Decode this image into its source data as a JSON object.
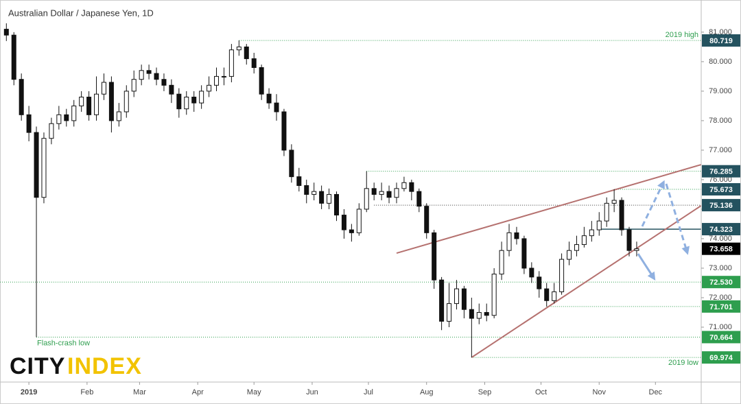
{
  "chart_data": {
    "type": "candlestick",
    "title": "Australian Dollar / Japanese Yen, 1D",
    "xlim": [
      -15.4,
      358.4
    ],
    "xticks": [
      {
        "value": 0,
        "label": "2019"
      },
      {
        "value": 31,
        "label": "Feb"
      },
      {
        "value": 59,
        "label": "Mar"
      },
      {
        "value": 90,
        "label": "Apr"
      },
      {
        "value": 120,
        "label": "May"
      },
      {
        "value": 151,
        "label": "Jun"
      },
      {
        "value": 181,
        "label": "Jul"
      },
      {
        "value": 212,
        "label": "Aug"
      },
      {
        "value": 243,
        "label": "Sep"
      },
      {
        "value": 273,
        "label": "Oct"
      },
      {
        "value": 304,
        "label": "Nov"
      },
      {
        "value": 334,
        "label": "Dec"
      }
    ],
    "ylim": [
      69.14,
      82.09
    ],
    "yticks": [
      {
        "value": 71,
        "label": "71.000"
      },
      {
        "value": 72,
        "label": "72.000"
      },
      {
        "value": 73,
        "label": "73.000"
      },
      {
        "value": 74,
        "label": "74.000"
      },
      {
        "value": 75,
        "label": "75.000"
      },
      {
        "value": 76,
        "label": "76.000"
      },
      {
        "value": 77,
        "label": "77.000"
      },
      {
        "value": 78,
        "label": "78.000"
      },
      {
        "value": 79,
        "label": "79.000"
      },
      {
        "value": 80,
        "label": "80.000"
      },
      {
        "value": 81,
        "label": "81.000"
      }
    ],
    "up_color": "#ffffff",
    "down_color": "#111111",
    "x": [
      -12,
      -8,
      -4,
      0,
      4,
      8,
      12,
      16,
      20,
      24,
      28,
      32,
      36,
      40,
      44,
      48,
      52,
      56,
      60,
      64,
      68,
      72,
      76,
      80,
      84,
      88,
      92,
      96,
      100,
      104,
      108,
      112,
      116,
      120,
      124,
      128,
      132,
      136,
      140,
      144,
      148,
      152,
      156,
      160,
      164,
      168,
      172,
      176,
      180,
      184,
      188,
      192,
      196,
      200,
      204,
      208,
      212,
      216,
      220,
      224,
      228,
      232,
      236,
      240,
      244,
      248,
      252,
      256,
      260,
      264,
      268,
      272,
      276,
      280,
      284,
      288,
      292,
      296,
      300,
      304,
      308,
      312,
      316,
      320,
      324
    ],
    "open": [
      81.1,
      80.9,
      79.4,
      78.2,
      77.6,
      75.4,
      77.4,
      77.9,
      78.2,
      78.0,
      78.5,
      78.8,
      78.2,
      78.9,
      79.3,
      78.0,
      78.3,
      79.0,
      79.4,
      79.7,
      79.6,
      79.4,
      79.2,
      78.9,
      78.4,
      78.8,
      78.6,
      79.0,
      79.2,
      79.5,
      79.5,
      80.4,
      80.5,
      80.1,
      79.8,
      78.9,
      78.6,
      78.3,
      77.0,
      76.1,
      75.8,
      75.5,
      75.6,
      75.2,
      75.5,
      74.8,
      74.3,
      74.2,
      75.0,
      75.7,
      75.5,
      75.6,
      75.4,
      75.7,
      75.9,
      75.6,
      75.1,
      74.2,
      72.6,
      71.2,
      71.8,
      72.3,
      71.6,
      71.3,
      71.5,
      71.4,
      72.8,
      73.6,
      74.2,
      74.0,
      73.0,
      72.7,
      72.3,
      71.9,
      72.2,
      73.3,
      73.6,
      73.8,
      74.1,
      74.3,
      74.6,
      75.2,
      75.3,
      74.3,
      73.6
    ],
    "high": [
      81.3,
      81.0,
      79.6,
      78.5,
      77.8,
      77.6,
      78.1,
      78.5,
      78.4,
      78.7,
      79.0,
      79.0,
      79.5,
      79.6,
      79.5,
      78.6,
      79.2,
      79.7,
      79.9,
      79.9,
      79.8,
      79.6,
      79.4,
      79.1,
      79.0,
      79.0,
      79.2,
      79.5,
      79.8,
      79.8,
      80.6,
      80.719,
      80.6,
      80.3,
      79.9,
      79.1,
      78.9,
      78.4,
      77.2,
      76.4,
      76.0,
      75.9,
      75.8,
      75.7,
      75.6,
      75.0,
      74.5,
      75.2,
      76.285,
      75.9,
      75.9,
      75.8,
      75.9,
      76.1,
      76.0,
      75.7,
      75.2,
      74.3,
      72.7,
      72.5,
      72.6,
      72.4,
      72.0,
      71.8,
      71.8,
      73.0,
      73.9,
      74.5,
      74.4,
      74.1,
      73.2,
      72.9,
      72.5,
      72.5,
      73.5,
      73.9,
      74.1,
      74.4,
      74.6,
      74.9,
      75.4,
      75.673,
      75.4,
      74.4,
      73.9
    ],
    "low": [
      80.7,
      79.2,
      78.0,
      77.3,
      70.664,
      75.2,
      77.2,
      77.7,
      77.8,
      77.8,
      78.3,
      78.0,
      78.0,
      78.7,
      77.6,
      77.8,
      78.1,
      78.8,
      79.2,
      79.4,
      79.2,
      79.0,
      78.6,
      78.1,
      78.2,
      78.3,
      78.4,
      78.8,
      79.0,
      79.2,
      79.3,
      80.2,
      79.9,
      79.6,
      78.7,
      78.4,
      78.0,
      76.8,
      75.9,
      75.6,
      75.2,
      75.3,
      75.0,
      75.0,
      74.6,
      74.0,
      73.9,
      74.1,
      74.9,
      75.3,
      75.3,
      75.2,
      75.2,
      75.6,
      75.3,
      74.9,
      74.0,
      72.3,
      70.9,
      71.0,
      71.6,
      71.3,
      69.974,
      71.1,
      71.2,
      71.3,
      72.6,
      73.4,
      73.8,
      72.8,
      72.5,
      72.0,
      71.701,
      71.8,
      72.1,
      73.1,
      73.4,
      73.7,
      73.9,
      74.1,
      74.4,
      74.9,
      74.1,
      73.4,
      73.4
    ],
    "close": [
      80.9,
      79.4,
      78.2,
      77.6,
      75.4,
      77.4,
      77.9,
      78.2,
      78.0,
      78.5,
      78.8,
      78.2,
      78.9,
      79.3,
      78.0,
      78.3,
      79.0,
      79.4,
      79.7,
      79.6,
      79.4,
      79.2,
      78.9,
      78.4,
      78.8,
      78.6,
      79.0,
      79.2,
      79.5,
      79.5,
      80.4,
      80.5,
      80.1,
      79.8,
      78.9,
      78.6,
      78.3,
      77.0,
      76.1,
      75.8,
      75.5,
      75.6,
      75.2,
      75.5,
      74.8,
      74.3,
      74.2,
      75.0,
      75.7,
      75.5,
      75.6,
      75.4,
      75.7,
      75.9,
      75.6,
      75.1,
      74.2,
      72.6,
      71.2,
      71.8,
      72.3,
      71.6,
      71.3,
      71.5,
      71.4,
      72.8,
      73.6,
      74.2,
      74.0,
      73.0,
      72.7,
      72.3,
      71.9,
      72.2,
      73.3,
      73.6,
      73.8,
      74.1,
      74.3,
      74.6,
      75.2,
      75.3,
      74.3,
      73.6,
      73.658
    ],
    "levels": [
      {
        "value": 80.719,
        "start": 112,
        "style": "dotted",
        "line_color": "#2e9e4e",
        "box_color": "#24525f",
        "text": "2019 high",
        "text_pos": "above"
      },
      {
        "value": 76.285,
        "start": 180,
        "style": "dotted",
        "line_color": "#2e9e4e",
        "box_color": "#24525f"
      },
      {
        "value": 75.673,
        "start": 312,
        "style": "dotted",
        "line_color": "#2e9e4e",
        "box_color": "#24525f"
      },
      {
        "value": 75.136,
        "start": 184,
        "style": "dotted",
        "line_color": "#333333",
        "box_color": "#24525f"
      },
      {
        "value": 74.323,
        "start": 304,
        "style": "solid",
        "line_color": "#24525f",
        "box_color": "#24525f"
      },
      {
        "value": 73.658,
        "box_color": "#000000"
      },
      {
        "value": 72.53,
        "value_label": "72.530",
        "start": -15.4,
        "style": "dotted",
        "line_color": "#2e9e4e",
        "box_color": "#2e9e4e"
      },
      {
        "value": 71.701,
        "start": 276,
        "style": "dotted",
        "line_color": "#2e9e4e",
        "box_color": "#2e9e4e"
      },
      {
        "value": 70.664,
        "start": 4,
        "style": "dotted",
        "line_color": "#2e9e4e",
        "box_color": "#2e9e4e",
        "text": "Flash-crash low",
        "text_pos": "below-left"
      },
      {
        "value": 69.974,
        "start": 236,
        "style": "dotted",
        "line_color": "#2e9e4e",
        "box_color": "#2e9e4e",
        "text": "2019 low",
        "text_pos": "below"
      }
    ],
    "trendlines": [
      {
        "x": [
          196,
          358.4
        ],
        "y": [
          73.51,
          76.51
        ],
        "color": "#b5716f"
      },
      {
        "x": [
          236,
          358.4
        ],
        "y": [
          69.974,
          75.12
        ],
        "color": "#b5716f"
      }
    ],
    "logo": {
      "part1": "CITY",
      "part2": "INDEX"
    }
  }
}
